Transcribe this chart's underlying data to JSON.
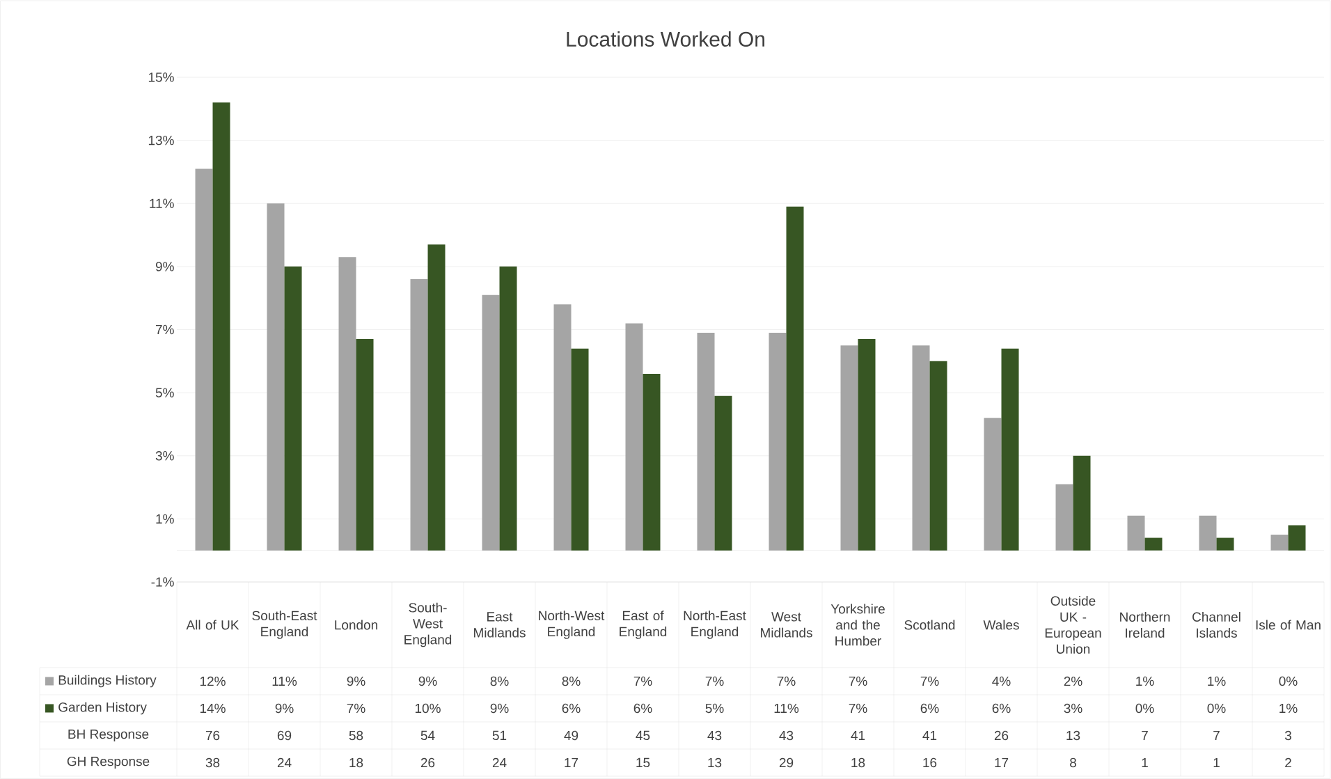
{
  "chart_data": {
    "type": "bar",
    "title": "Locations Worked On",
    "categories": [
      "All of UK",
      "South-East England",
      "London",
      "South-West England",
      "East Midlands",
      "North-West England",
      "East of England",
      "North-East England",
      "West Midlands",
      "Yorkshire and the Humber",
      "Scotland",
      "Wales",
      "Outside UK - European Union",
      "Northern Ireland",
      "Channel Islands",
      "Isle of Man"
    ],
    "series": [
      {
        "name": "Buildings History",
        "color": "#a5a5a5",
        "values": [
          12.1,
          11.0,
          9.3,
          8.6,
          8.1,
          7.8,
          7.2,
          6.9,
          6.9,
          6.5,
          6.5,
          4.2,
          2.1,
          1.1,
          1.1,
          0.5
        ],
        "value_labels": [
          "12%",
          "11%",
          "9%",
          "9%",
          "8%",
          "8%",
          "7%",
          "7%",
          "7%",
          "7%",
          "7%",
          "4%",
          "2%",
          "1%",
          "1%",
          "0%"
        ]
      },
      {
        "name": "Garden History",
        "color": "#375623",
        "values": [
          14.2,
          9.0,
          6.7,
          9.7,
          9.0,
          6.4,
          5.6,
          4.9,
          10.9,
          6.7,
          6.0,
          6.4,
          3.0,
          0.4,
          0.4,
          0.8
        ],
        "value_labels": [
          "14%",
          "9%",
          "7%",
          "10%",
          "9%",
          "6%",
          "6%",
          "5%",
          "11%",
          "7%",
          "6%",
          "6%",
          "3%",
          "0%",
          "0%",
          "1%"
        ]
      }
    ],
    "ylim": [
      -1,
      15
    ],
    "yticks": [
      {
        "value": -1,
        "label": "-1%"
      },
      {
        "value": 1,
        "label": "1%"
      },
      {
        "value": 3,
        "label": "3%"
      },
      {
        "value": 5,
        "label": "5%"
      },
      {
        "value": 7,
        "label": "7%"
      },
      {
        "value": 9,
        "label": "9%"
      },
      {
        "value": 11,
        "label": "11%"
      },
      {
        "value": 13,
        "label": "13%"
      },
      {
        "value": 15,
        "label": "15%"
      }
    ],
    "grid": "y",
    "legend": "bottom",
    "annotations": [
      "BH Response",
      "76",
      "69",
      "58",
      "54",
      "51",
      "49",
      "45",
      "43",
      "43",
      "41",
      "41",
      "26",
      "13",
      "7",
      "7",
      "3",
      "GH Response",
      "38",
      "24",
      "18",
      "26",
      "24",
      "17",
      "15",
      "13",
      "29",
      "18",
      "16",
      "17",
      "8",
      "1",
      "1",
      "2"
    ]
  }
}
